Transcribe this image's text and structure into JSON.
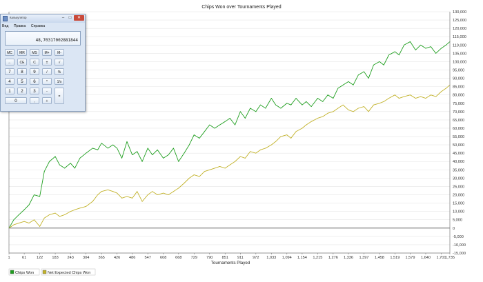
{
  "chart_data": {
    "type": "line",
    "title": "Chips Won over Tournaments Played",
    "xlabel": "Tournaments Played",
    "ylabel": "",
    "xlim": [
      1,
      1735
    ],
    "ylim": [
      -15000,
      130000
    ],
    "grid": "horizontal",
    "legend_position": "bottom-left",
    "x_ticks": [
      1,
      61,
      122,
      183,
      243,
      304,
      365,
      426,
      486,
      547,
      608,
      668,
      729,
      790,
      851,
      911,
      972,
      1033,
      1094,
      1154,
      1215,
      1276,
      1336,
      1397,
      1458,
      1519,
      1579,
      1640,
      1701,
      1735
    ],
    "x_tick_labels": [
      "1",
      "61",
      "122",
      "183",
      "243",
      "304",
      "365",
      "426",
      "486",
      "547",
      "608",
      "668",
      "729",
      "790",
      "851",
      "911",
      "972",
      "1,033",
      "1,094",
      "1,154",
      "1,215",
      "1,276",
      "1,336",
      "1,397",
      "1,458",
      "1,519",
      "1,579",
      "1,640",
      "1,701",
      "1,735"
    ],
    "y_ticks": [
      -15000,
      -10000,
      -5000,
      0,
      5000,
      10000,
      15000,
      20000,
      25000,
      30000,
      35000,
      40000,
      45000,
      50000,
      55000,
      60000,
      65000,
      70000,
      75000,
      80000,
      85000,
      90000,
      95000,
      100000,
      105000,
      110000,
      115000,
      120000,
      125000,
      130000
    ],
    "y_tick_labels": [
      "-15,000",
      "-10,000",
      "-5,000",
      "0",
      "5,000",
      "10,000",
      "15,000",
      "20,000",
      "25,000",
      "30,000",
      "35,000",
      "40,000",
      "45,000",
      "50,000",
      "55,000",
      "60,000",
      "65,000",
      "70,000",
      "75,000",
      "80,000",
      "85,000",
      "90,000",
      "95,000",
      "100,000",
      "105,000",
      "110,000",
      "115,000",
      "120,000",
      "125,000",
      "130,000"
    ],
    "series": [
      {
        "name": "Chips Won",
        "color": "#1e9e1e",
        "x": [
          1,
          20,
          40,
          61,
          80,
          100,
          122,
          140,
          160,
          183,
          200,
          220,
          243,
          260,
          280,
          304,
          330,
          350,
          365,
          390,
          410,
          426,
          445,
          465,
          486,
          505,
          525,
          547,
          565,
          585,
          608,
          628,
          648,
          668,
          690,
          710,
          729,
          750,
          770,
          790,
          810,
          830,
          851,
          870,
          890,
          911,
          930,
          950,
          972,
          990,
          1010,
          1033,
          1050,
          1070,
          1094,
          1110,
          1130,
          1154,
          1170,
          1190,
          1215,
          1235,
          1255,
          1276,
          1295,
          1315,
          1336,
          1355,
          1375,
          1397,
          1415,
          1435,
          1458,
          1475,
          1495,
          1519,
          1535,
          1555,
          1579,
          1600,
          1620,
          1640,
          1660,
          1680,
          1701,
          1720,
          1735
        ],
        "y": [
          0,
          5000,
          8000,
          11000,
          14000,
          20000,
          19000,
          34000,
          40000,
          43000,
          38000,
          36000,
          39000,
          36000,
          42000,
          45000,
          48000,
          47000,
          51000,
          48000,
          50000,
          48000,
          42000,
          52000,
          44000,
          46000,
          40000,
          48000,
          44000,
          47000,
          42000,
          44000,
          48000,
          40000,
          45000,
          50000,
          56000,
          54000,
          58000,
          62000,
          60000,
          62000,
          64000,
          66000,
          62000,
          70000,
          66000,
          72000,
          70000,
          74000,
          72000,
          78000,
          74000,
          72000,
          75000,
          74000,
          78000,
          74000,
          76000,
          73000,
          78000,
          76000,
          80000,
          78000,
          84000,
          86000,
          88000,
          86000,
          92000,
          94000,
          90000,
          98000,
          100000,
          98000,
          104000,
          106000,
          104000,
          110000,
          112000,
          107000,
          110000,
          108000,
          109000,
          105000,
          108000,
          110000,
          112000
        ]
      },
      {
        "name": "Net Expected Chips Won",
        "color": "#c2b22a",
        "x": [
          1,
          20,
          40,
          61,
          80,
          100,
          122,
          140,
          160,
          183,
          200,
          220,
          243,
          260,
          280,
          304,
          330,
          350,
          365,
          390,
          410,
          426,
          445,
          465,
          486,
          505,
          525,
          547,
          565,
          585,
          608,
          628,
          648,
          668,
          690,
          710,
          729,
          750,
          770,
          790,
          810,
          830,
          851,
          870,
          890,
          911,
          930,
          950,
          972,
          990,
          1010,
          1033,
          1050,
          1070,
          1094,
          1110,
          1130,
          1154,
          1170,
          1190,
          1215,
          1235,
          1255,
          1276,
          1295,
          1315,
          1336,
          1355,
          1375,
          1397,
          1415,
          1435,
          1458,
          1475,
          1495,
          1519,
          1535,
          1555,
          1579,
          1600,
          1620,
          1640,
          1660,
          1680,
          1701,
          1720,
          1735
        ],
        "y": [
          0,
          2000,
          3000,
          4000,
          3000,
          5000,
          1000,
          6000,
          8000,
          9000,
          7000,
          8000,
          10000,
          11000,
          12000,
          13000,
          16000,
          20000,
          22000,
          23000,
          22000,
          21000,
          18000,
          19000,
          18000,
          22000,
          16000,
          20000,
          22000,
          20000,
          21000,
          20000,
          22000,
          24000,
          27000,
          30000,
          32000,
          31000,
          34000,
          35000,
          36000,
          37000,
          36000,
          38000,
          40000,
          43000,
          42000,
          46000,
          45000,
          47000,
          48000,
          50000,
          52000,
          55000,
          56000,
          54000,
          58000,
          60000,
          62000,
          64000,
          66000,
          67000,
          69000,
          70000,
          72000,
          74000,
          71000,
          70000,
          72000,
          73000,
          70000,
          74000,
          75000,
          76000,
          78000,
          80000,
          78000,
          79000,
          80000,
          78000,
          79000,
          78000,
          80000,
          79000,
          82000,
          84000,
          86000
        ]
      }
    ]
  },
  "calculator": {
    "window_title": "Калькулятор",
    "minimize_label": "–",
    "maximize_label": "□",
    "close_label": "✕",
    "menu": [
      "Вид",
      "Правка",
      "Справка"
    ],
    "display_value": "48,70317002881844",
    "keys": [
      [
        "MC",
        "MR",
        "MS",
        "M+",
        "M-"
      ],
      [
        "←",
        "CE",
        "C",
        "±",
        "√"
      ],
      [
        "7",
        "8",
        "9",
        "/",
        "%"
      ],
      [
        "4",
        "5",
        "6",
        "*",
        "1/x"
      ],
      [
        "1",
        "2",
        "3",
        "-",
        "="
      ],
      [
        "0",
        ",",
        "+"
      ]
    ]
  },
  "colors": {
    "zero_line": "#555555",
    "grid": "#e6e6e6"
  }
}
